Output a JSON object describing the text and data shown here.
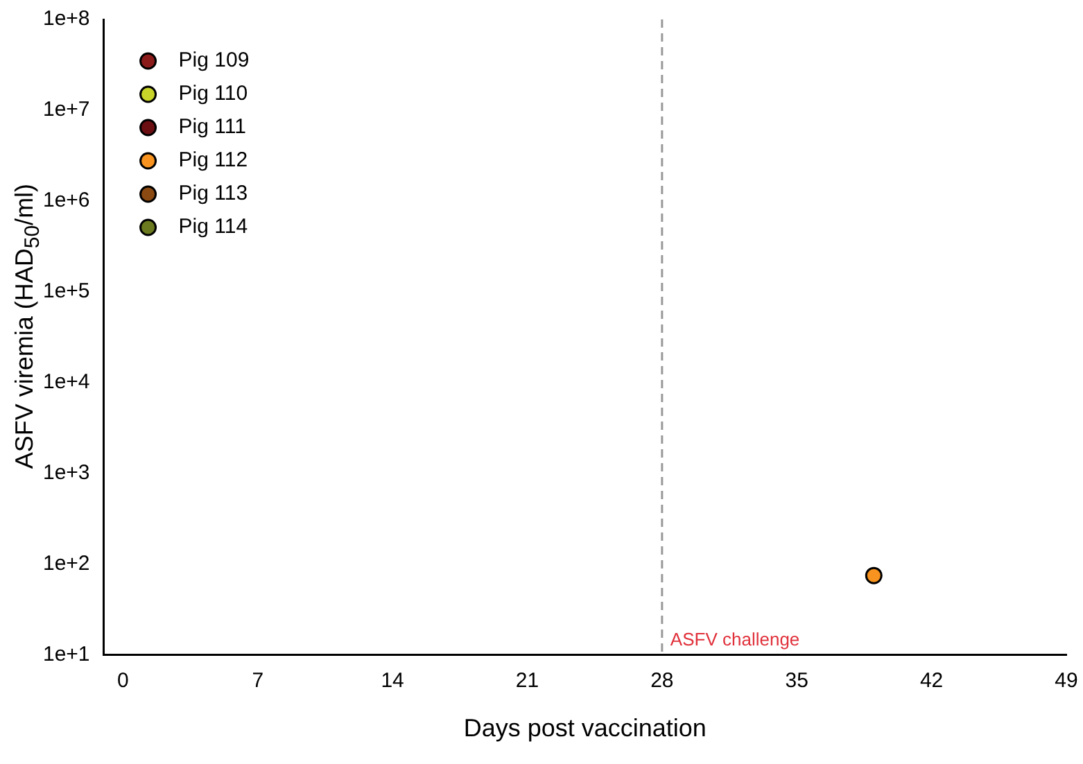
{
  "chart_data": {
    "type": "scatter",
    "xlabel": "Days post vaccination",
    "ylabel": "ASFV viremia (HAD$_{50}$/ml)",
    "x": [
      39
    ],
    "series": [
      {
        "name": "Pig 109",
        "color": "#8b1a1a",
        "values": [
          null
        ]
      },
      {
        "name": "Pig 110",
        "color": "#c8d42a",
        "values": [
          null
        ]
      },
      {
        "name": "Pig 111",
        "color": "#6b0f12",
        "values": [
          null
        ]
      },
      {
        "name": "Pig 112",
        "color": "#f7931e",
        "values": [
          75
        ]
      },
      {
        "name": "Pig 113",
        "color": "#8b4a12",
        "values": [
          null
        ]
      },
      {
        "name": "Pig 114",
        "color": "#6b7a1e",
        "values": [
          null
        ]
      }
    ],
    "xlim": [
      -1,
      49
    ],
    "xticks": [
      0,
      7,
      14,
      21,
      28,
      35,
      42,
      49
    ],
    "ylim": [
      10,
      100000000
    ],
    "yticks": [
      {
        "value": 10,
        "label": "1e+1"
      },
      {
        "value": 100,
        "label": "1e+2"
      },
      {
        "value": 1000,
        "label": "1e+3"
      },
      {
        "value": 10000,
        "label": "1e+4"
      },
      {
        "value": 100000,
        "label": "1e+5"
      },
      {
        "value": 1000000,
        "label": "1e+6"
      },
      {
        "value": 10000000,
        "label": "1e+7"
      },
      {
        "value": 100000000,
        "label": "1e+8"
      }
    ],
    "log": "y",
    "grid": false,
    "legend": "top left",
    "marker": "circle",
    "ref_lines": [
      {
        "axis": "x",
        "value": 28,
        "label": "ASFV challenge",
        "color": "#999999",
        "line_style": "dashed"
      }
    ]
  }
}
